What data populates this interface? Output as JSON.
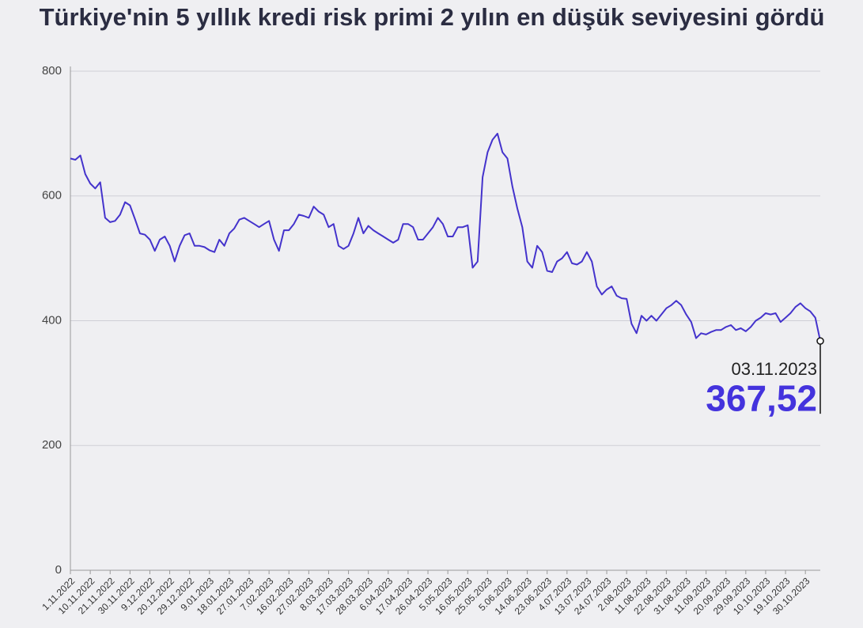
{
  "chart_data": {
    "type": "line",
    "title": "Türkiye'nin 5 yıllık kredi risk primi 2 yılın en düşük seviyesini gördü",
    "categories": [
      "1.11.2022",
      null,
      null,
      null,
      "10.11.2022",
      null,
      null,
      null,
      "21.11.2022",
      null,
      null,
      null,
      "30.11.2022",
      null,
      null,
      null,
      "9.12.2022",
      null,
      null,
      null,
      "20.12.2022",
      null,
      null,
      null,
      "29.12.2022",
      null,
      null,
      null,
      "9.01.2023",
      null,
      null,
      null,
      "18.01.2023",
      null,
      null,
      null,
      "27.01.2023",
      null,
      null,
      null,
      "7.02.2023",
      null,
      null,
      null,
      "16.02.2023",
      null,
      null,
      null,
      "27.02.2023",
      null,
      null,
      null,
      "8.03.2023",
      null,
      null,
      null,
      "17.03.2023",
      null,
      null,
      null,
      "28.03.2023",
      null,
      null,
      null,
      "6.04.2023",
      null,
      null,
      null,
      "17.04.2023",
      null,
      null,
      null,
      "26.04.2023",
      null,
      null,
      null,
      "5.05.2023",
      null,
      null,
      null,
      "16.05.2023",
      null,
      null,
      null,
      "25.05.2023",
      null,
      null,
      null,
      "5.06.2023",
      null,
      null,
      null,
      "14.06.2023",
      null,
      null,
      null,
      "23.06.2023",
      null,
      null,
      null,
      "4.07.2023",
      null,
      null,
      null,
      "13.07.2023",
      null,
      null,
      null,
      "24.07.2023",
      null,
      null,
      null,
      "2.08.2023",
      null,
      null,
      null,
      "11.08.2023",
      null,
      null,
      null,
      "22.08.2023",
      null,
      null,
      null,
      "31.08.2023",
      null,
      null,
      null,
      "11.09.2023",
      null,
      null,
      null,
      "20.09.2023",
      null,
      null,
      null,
      "29.09.2023",
      null,
      null,
      null,
      "10.10.2023",
      null,
      null,
      null,
      "19.10.2023",
      null,
      null,
      null,
      "30.10.2023",
      null,
      null,
      null
    ],
    "values": [
      660,
      658,
      665,
      635,
      620,
      612,
      622,
      565,
      558,
      560,
      570,
      590,
      585,
      563,
      540,
      538,
      530,
      512,
      530,
      535,
      520,
      495,
      520,
      537,
      540,
      520,
      520,
      518,
      513,
      510,
      530,
      520,
      540,
      548,
      562,
      565,
      560,
      555,
      550,
      555,
      560,
      530,
      512,
      545,
      545,
      555,
      570,
      568,
      565,
      583,
      575,
      570,
      550,
      555,
      520,
      515,
      520,
      540,
      565,
      540,
      552,
      545,
      540,
      535,
      530,
      525,
      530,
      555,
      555,
      550,
      530,
      530,
      540,
      550,
      565,
      555,
      535,
      535,
      550,
      550,
      553,
      485,
      495,
      630,
      670,
      690,
      700,
      670,
      660,
      615,
      580,
      550,
      495,
      485,
      520,
      510,
      480,
      478,
      495,
      500,
      510,
      492,
      490,
      495,
      510,
      495,
      455,
      442,
      450,
      455,
      440,
      436,
      435,
      395,
      380,
      408,
      400,
      408,
      400,
      410,
      420,
      425,
      432,
      425,
      410,
      398,
      372,
      380,
      378,
      382,
      385,
      385,
      390,
      393,
      385,
      388,
      383,
      390,
      400,
      405,
      412,
      410,
      412,
      398,
      405,
      412,
      422,
      428,
      420,
      415,
      405,
      367.52
    ],
    "value_labels": [
      null,
      null,
      null,
      null,
      null,
      null,
      null,
      null,
      null,
      null,
      null,
      null,
      null,
      null,
      null,
      null,
      null,
      null,
      null,
      null,
      null,
      null,
      null,
      null,
      null,
      null,
      null,
      null,
      null,
      null,
      null,
      null,
      null,
      null,
      null,
      null,
      null,
      null,
      null,
      null,
      null,
      null,
      null,
      null,
      null,
      null,
      null,
      null,
      null,
      null,
      null,
      null,
      null,
      null,
      null,
      null,
      null,
      null,
      null,
      null,
      null,
      null,
      null,
      null,
      null,
      null,
      null,
      null,
      null,
      null,
      null,
      null,
      null,
      null,
      null,
      null,
      null,
      null,
      null,
      null,
      null,
      null,
      null,
      null,
      null,
      null,
      null,
      null,
      null,
      null,
      null,
      null,
      null,
      null,
      null,
      null,
      null,
      null,
      null,
      null,
      null,
      null,
      null,
      null,
      null,
      null,
      null,
      null,
      null,
      null,
      null,
      null,
      null,
      null,
      null,
      null,
      null,
      null,
      null,
      null,
      null,
      null,
      null,
      null,
      null,
      null,
      null,
      null,
      null,
      null,
      null,
      null,
      null,
      null,
      null,
      null,
      null,
      null,
      null,
      null,
      null,
      null,
      null,
      null,
      null,
      null,
      null,
      null,
      null,
      null,
      null,
      "367,52"
    ],
    "annotation": "03.11.2023",
    "color": "#4433cc",
    "ylim": [
      0,
      800
    ],
    "yticks": [
      0,
      200,
      400,
      600,
      800
    ],
    "grid": true
  }
}
